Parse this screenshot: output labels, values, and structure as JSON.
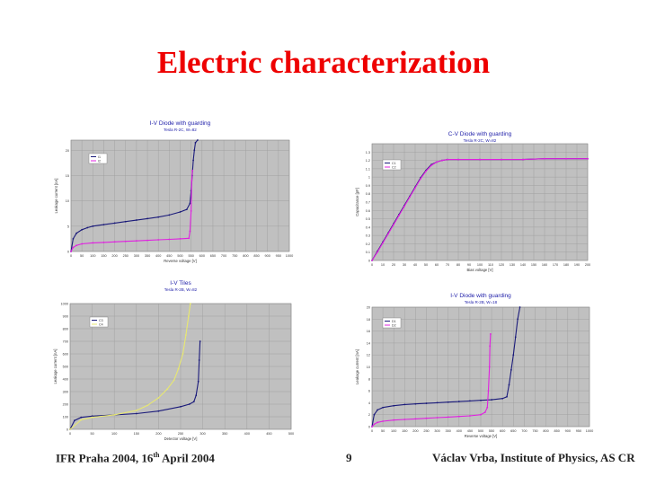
{
  "slide": {
    "title": "Electric characterization",
    "footer_left_pre": "IFR Praha 2004, 16",
    "footer_left_sup": "th",
    "footer_left_post": " April 2004",
    "page_number": "9",
    "footer_right": "Václav Vrba, Institute of Physics, AS CR"
  },
  "colors": {
    "plot_bg": "#c0c0c0",
    "navy": "#1a1a7a",
    "magenta": "#e020e0",
    "yellow": "#e8e870",
    "title_blue": "#2222aa",
    "slide_title": "#ee0000"
  },
  "chart_data": [
    {
      "id": "iv-guarding",
      "type": "line",
      "title": "I-V Diode with guarding",
      "subtitle": "Tesla R-2C, W=82",
      "xlabel": "Reverse voltage [V]",
      "ylabel": "Leakage current [nA]",
      "xlim": [
        0,
        1000
      ],
      "ylim": [
        0,
        22
      ],
      "xticks": [
        0,
        50,
        100,
        150,
        200,
        250,
        300,
        350,
        400,
        450,
        500,
        550,
        600,
        650,
        700,
        750,
        800,
        850,
        900,
        950,
        1000
      ],
      "yticks": [
        0,
        5,
        10,
        15,
        20
      ],
      "legend": [
        "I1",
        "I2"
      ],
      "series": [
        {
          "name": "I1",
          "color": "#1a1a7a",
          "x": [
            0,
            10,
            25,
            50,
            75,
            100,
            150,
            200,
            250,
            300,
            350,
            400,
            450,
            500,
            530,
            545,
            550,
            555,
            560,
            565,
            570,
            580
          ],
          "y": [
            0,
            2.5,
            3.6,
            4.3,
            4.7,
            5.0,
            5.3,
            5.6,
            5.9,
            6.2,
            6.5,
            6.8,
            7.2,
            7.8,
            8.3,
            9.5,
            12.0,
            15.0,
            18.0,
            20.0,
            21.5,
            22.0
          ]
        },
        {
          "name": "I2",
          "color": "#e020e0",
          "x": [
            0,
            10,
            25,
            50,
            100,
            150,
            200,
            250,
            300,
            350,
            400,
            450,
            500,
            540,
            545,
            550,
            553,
            556
          ],
          "y": [
            0,
            0.8,
            1.2,
            1.5,
            1.7,
            1.8,
            1.9,
            2.0,
            2.1,
            2.2,
            2.3,
            2.4,
            2.5,
            2.6,
            4.0,
            8.0,
            14.0,
            16.0
          ]
        }
      ]
    },
    {
      "id": "cv-guarding",
      "type": "line",
      "title": "C-V Diode with guarding",
      "subtitle": "Tesla R-2C, W=82",
      "xlabel": "Bias voltage [V]",
      "ylabel": "Capacitance [pF]",
      "xlim": [
        0,
        200
      ],
      "ylim": [
        0,
        1.4
      ],
      "xticks": [
        0,
        10,
        20,
        30,
        40,
        50,
        60,
        70,
        80,
        90,
        100,
        110,
        120,
        130,
        140,
        150,
        160,
        170,
        180,
        190,
        200
      ],
      "yticks": [
        0,
        0.1,
        0.2,
        0.3,
        0.4,
        0.5,
        0.6,
        0.7,
        0.8,
        0.9,
        1.0,
        1.1,
        1.2,
        1.3
      ],
      "legend": [
        "C1",
        "C2"
      ],
      "series": [
        {
          "name": "C1",
          "color": "#1a1a7a",
          "x": [
            0,
            5,
            10,
            15,
            20,
            25,
            30,
            35,
            40,
            45,
            50,
            55,
            60,
            65,
            70,
            80,
            100,
            120,
            140,
            160,
            180,
            200
          ],
          "y": [
            0,
            0.11,
            0.22,
            0.33,
            0.44,
            0.55,
            0.66,
            0.77,
            0.88,
            0.99,
            1.08,
            1.15,
            1.18,
            1.2,
            1.21,
            1.21,
            1.21,
            1.21,
            1.21,
            1.22,
            1.22,
            1.22
          ]
        },
        {
          "name": "C2",
          "color": "#e020e0",
          "x": [
            0,
            5,
            10,
            15,
            20,
            25,
            30,
            35,
            40,
            45,
            50,
            55,
            60,
            65,
            70,
            80,
            100,
            120,
            140,
            160,
            180,
            200
          ],
          "y": [
            0,
            0.1,
            0.21,
            0.32,
            0.43,
            0.54,
            0.65,
            0.76,
            0.87,
            0.98,
            1.07,
            1.14,
            1.18,
            1.2,
            1.21,
            1.21,
            1.21,
            1.21,
            1.21,
            1.22,
            1.22,
            1.22
          ]
        }
      ]
    },
    {
      "id": "iv-tiles",
      "type": "line",
      "title": "I-V Tiles",
      "subtitle": "Tesla R-2B, W=82",
      "xlabel": "Detector voltage [V]",
      "ylabel": "Leakage current [nA]",
      "xlim": [
        0,
        500
      ],
      "ylim": [
        0,
        1000
      ],
      "xticks": [
        0,
        50,
        100,
        150,
        200,
        250,
        300,
        350,
        400,
        450,
        500
      ],
      "yticks": [
        0,
        100,
        200,
        300,
        400,
        500,
        600,
        700,
        800,
        900,
        1000
      ],
      "legend": [
        "C3",
        "C4"
      ],
      "series": [
        {
          "name": "C3",
          "color": "#1a1a7a",
          "x": [
            0,
            10,
            25,
            50,
            100,
            150,
            200,
            250,
            270,
            280,
            285,
            290,
            292,
            294
          ],
          "y": [
            0,
            70,
            95,
            105,
            115,
            125,
            145,
            180,
            200,
            220,
            270,
            380,
            550,
            700
          ]
        },
        {
          "name": "C4",
          "color": "#e8e870",
          "x": [
            0,
            25,
            50,
            100,
            150,
            175,
            200,
            220,
            235,
            245,
            255,
            262,
            268,
            272
          ],
          "y": [
            0,
            75,
            95,
            115,
            150,
            190,
            250,
            320,
            390,
            480,
            600,
            750,
            900,
            1000
          ]
        }
      ]
    },
    {
      "id": "iv-guarding-2",
      "type": "line",
      "title": "I-V Diode with guarding",
      "subtitle": "Tesla R-2B, W=18",
      "xlabel": "Reverse voltage [V]",
      "ylabel": "Leakage current [nA]",
      "xlim": [
        0,
        1000
      ],
      "ylim": [
        0,
        20
      ],
      "xticks": [
        0,
        50,
        100,
        150,
        200,
        250,
        300,
        350,
        400,
        450,
        500,
        550,
        600,
        650,
        700,
        750,
        800,
        850,
        900,
        950,
        1000
      ],
      "yticks": [
        0,
        2,
        4,
        6,
        8,
        10,
        12,
        14,
        16,
        18,
        20
      ],
      "legend": [
        "D1",
        "D2"
      ],
      "series": [
        {
          "name": "D1",
          "color": "#1a1a7a",
          "x": [
            0,
            10,
            25,
            50,
            100,
            150,
            200,
            250,
            300,
            350,
            400,
            450,
            500,
            550,
            600,
            620,
            630,
            640,
            650,
            660,
            670,
            680
          ],
          "y": [
            0,
            2.0,
            2.8,
            3.2,
            3.5,
            3.7,
            3.8,
            3.9,
            4.0,
            4.1,
            4.2,
            4.3,
            4.4,
            4.5,
            4.7,
            5.0,
            7.0,
            9.5,
            12.0,
            15.0,
            18.0,
            20.0
          ]
        },
        {
          "name": "D2",
          "color": "#e020e0",
          "x": [
            0,
            10,
            25,
            50,
            100,
            150,
            200,
            250,
            300,
            350,
            400,
            450,
            500,
            520,
            530,
            535,
            540,
            542,
            545
          ],
          "y": [
            0,
            0.4,
            0.7,
            0.9,
            1.1,
            1.2,
            1.3,
            1.4,
            1.5,
            1.6,
            1.7,
            1.8,
            2.0,
            2.4,
            3.2,
            6.0,
            10.0,
            13.5,
            15.5
          ]
        }
      ]
    }
  ]
}
